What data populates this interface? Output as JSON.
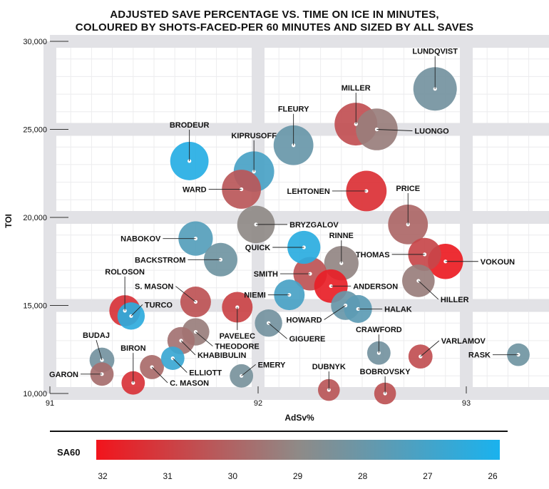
{
  "title_line1": "ADJUSTED SAVE PERCENTAGE VS. TIME ON ICE IN MINUTES,",
  "title_line2": "COLOURED BY SHOTS-FACED-PER 60 MINUTES AND SIZED BY ALL SAVES",
  "chart_data": {
    "type": "scatter",
    "xlabel": "AdSv%",
    "ylabel": "TOI",
    "xlim": [
      91,
      93.4
    ],
    "ylim": [
      10000,
      30000
    ],
    "xticks": [
      91,
      92,
      93
    ],
    "yticks": [
      10000,
      15000,
      20000,
      25000,
      30000
    ],
    "xtick_labels": [
      "91",
      "92",
      "93"
    ],
    "ytick_labels": [
      "10,000",
      "15,000",
      "20,000",
      "25,000",
      "30,000"
    ],
    "grid": true,
    "color_legend": {
      "title": "SA60",
      "ticks": [
        32,
        31,
        30,
        29,
        28,
        27,
        26
      ],
      "low_color": "#1ab2ee",
      "mid_color": "#8f8a87",
      "high_color": "#f2141c"
    },
    "points": [
      {
        "name": "LUNDQVIST",
        "x": 92.85,
        "y": 27300,
        "sa60": 28.3,
        "saves": 5500
      },
      {
        "name": "MILLER",
        "x": 92.47,
        "y": 25300,
        "sa60": 30.5,
        "saves": 5300
      },
      {
        "name": "LUONGO",
        "x": 92.57,
        "y": 25000,
        "sa60": 29.3,
        "saves": 5000
      },
      {
        "name": "FLEURY",
        "x": 92.17,
        "y": 24100,
        "sa60": 28.0,
        "saves": 4400
      },
      {
        "name": "BRODEUR",
        "x": 91.67,
        "y": 23200,
        "sa60": 26.3,
        "saves": 4000
      },
      {
        "name": "KIPRUSOFF",
        "x": 91.98,
        "y": 22600,
        "sa60": 27.2,
        "saves": 4600
      },
      {
        "name": "WARD",
        "x": 91.92,
        "y": 21600,
        "sa60": 30.3,
        "saves": 4200
      },
      {
        "name": "LEHTONEN",
        "x": 92.52,
        "y": 21500,
        "sa60": 31.3,
        "saves": 4600
      },
      {
        "name": "PRICE",
        "x": 92.72,
        "y": 19600,
        "sa60": 29.9,
        "saves": 4400
      },
      {
        "name": "BRYZGALOV",
        "x": 91.99,
        "y": 19600,
        "sa60": 29.0,
        "saves": 3800
      },
      {
        "name": "NABOKOV",
        "x": 91.7,
        "y": 18800,
        "sa60": 27.5,
        "saves": 3000
      },
      {
        "name": "QUICK",
        "x": 92.22,
        "y": 18300,
        "sa60": 26.4,
        "saves": 2700
      },
      {
        "name": "RINNE",
        "x": 92.4,
        "y": 17400,
        "sa60": 29.1,
        "saves": 3000
      },
      {
        "name": "THOMAS",
        "x": 92.8,
        "y": 17900,
        "sa60": 30.7,
        "saves": 2700
      },
      {
        "name": "VOKOUN",
        "x": 92.9,
        "y": 17500,
        "sa60": 31.8,
        "saves": 3200
      },
      {
        "name": "BACKSTROM",
        "x": 91.82,
        "y": 17600,
        "sa60": 28.2,
        "saves": 2800
      },
      {
        "name": "SMITH",
        "x": 92.25,
        "y": 16800,
        "sa60": 30.4,
        "saves": 2800
      },
      {
        "name": "HILLER",
        "x": 92.77,
        "y": 16400,
        "sa60": 29.3,
        "saves": 2600
      },
      {
        "name": "ANDERSON",
        "x": 92.35,
        "y": 16100,
        "sa60": 31.7,
        "saves": 2800
      },
      {
        "name": "NIEMI",
        "x": 92.15,
        "y": 15600,
        "sa60": 27.2,
        "saves": 2200
      },
      {
        "name": "ROLOSON",
        "x": 91.36,
        "y": 14700,
        "sa60": 31.2,
        "saves": 2300
      },
      {
        "name": "TURCO",
        "x": 91.39,
        "y": 14400,
        "sa60": 26.5,
        "saves": 1600
      },
      {
        "name": "S. MASON",
        "x": 91.7,
        "y": 15200,
        "sa60": 30.4,
        "saves": 2200
      },
      {
        "name": "PAVELEC",
        "x": 91.9,
        "y": 14900,
        "sa60": 30.8,
        "saves": 2200
      },
      {
        "name": "HOWARD",
        "x": 92.42,
        "y": 15000,
        "sa60": 28.0,
        "saves": 1900
      },
      {
        "name": "HALAK",
        "x": 92.48,
        "y": 14800,
        "sa60": 27.7,
        "saves": 1700
      },
      {
        "name": "GIGUERE",
        "x": 92.05,
        "y": 14000,
        "sa60": 28.3,
        "saves": 1600
      },
      {
        "name": "THEODORE",
        "x": 91.7,
        "y": 13500,
        "sa60": 29.3,
        "saves": 1600
      },
      {
        "name": "KHABIBULIN",
        "x": 91.63,
        "y": 13000,
        "sa60": 29.6,
        "saves": 1600
      },
      {
        "name": "BUDAJ",
        "x": 91.25,
        "y": 11900,
        "sa60": 28.3,
        "saves": 1200
      },
      {
        "name": "GARON",
        "x": 91.25,
        "y": 11100,
        "sa60": 29.7,
        "saves": 1000
      },
      {
        "name": "BIRON",
        "x": 91.4,
        "y": 10600,
        "sa60": 31.2,
        "saves": 1000
      },
      {
        "name": "ELLIOTT",
        "x": 91.59,
        "y": 12000,
        "sa60": 26.8,
        "saves": 1000
      },
      {
        "name": "C. MASON",
        "x": 91.49,
        "y": 11500,
        "sa60": 29.8,
        "saves": 1100
      },
      {
        "name": "EMERY",
        "x": 91.92,
        "y": 11000,
        "sa60": 28.4,
        "saves": 1000
      },
      {
        "name": "CRAWFORD",
        "x": 92.58,
        "y": 12300,
        "sa60": 28.3,
        "saves": 1000
      },
      {
        "name": "VARLAMOV",
        "x": 92.78,
        "y": 12100,
        "sa60": 30.5,
        "saves": 1100
      },
      {
        "name": "RASK",
        "x": 93.25,
        "y": 12200,
        "sa60": 28.2,
        "saves": 900
      },
      {
        "name": "DUBNYK",
        "x": 92.34,
        "y": 10200,
        "sa60": 30.3,
        "saves": 800
      },
      {
        "name": "BOBROVSKY",
        "x": 92.61,
        "y": 10000,
        "sa60": 30.4,
        "saves": 800
      }
    ]
  }
}
